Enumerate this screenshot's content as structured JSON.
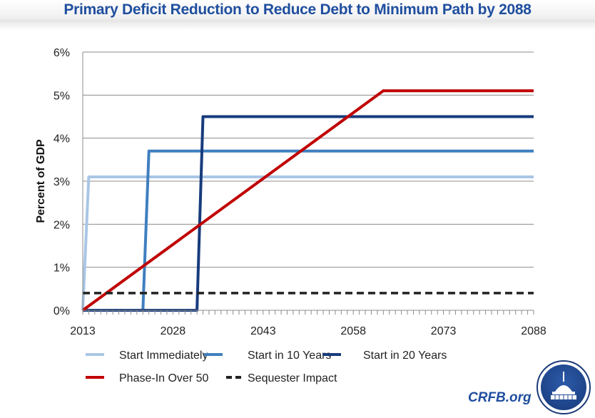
{
  "title": "Primary Deficit Reduction to Reduce Debt to Minimum Path by 2088",
  "branding": {
    "site": "CRFB.org",
    "logo": "capitol-dome-logo"
  },
  "chart_data": {
    "type": "line",
    "title": "Primary Deficit Reduction to Reduce Debt to Minimum Path by 2088",
    "xlabel": "",
    "ylabel": "Percent of GDP",
    "xlim": [
      2013,
      2088
    ],
    "ylim": [
      0,
      6
    ],
    "x_ticks": [
      "2013",
      "2028",
      "2043",
      "2058",
      "2073",
      "2088"
    ],
    "x_tick_values": [
      2013,
      2028,
      2043,
      2058,
      2073,
      2088
    ],
    "y_ticks": [
      "0%",
      "1%",
      "2%",
      "3%",
      "4%",
      "5%",
      "6%"
    ],
    "y_tick_values": [
      0,
      1,
      2,
      3,
      4,
      5,
      6
    ],
    "grid": "horizontal",
    "legend_position": "bottom",
    "series": [
      {
        "name": "Start Immediately",
        "color": "#a9c6e6",
        "dashed": false,
        "points": [
          [
            2013,
            0
          ],
          [
            2014,
            3.1
          ],
          [
            2088,
            3.1
          ]
        ]
      },
      {
        "name": "Start in 10 Years",
        "color": "#3f7fbf",
        "dashed": false,
        "points": [
          [
            2013,
            0
          ],
          [
            2023,
            0
          ],
          [
            2024,
            3.7
          ],
          [
            2088,
            3.7
          ]
        ]
      },
      {
        "name": "Start in 20 Years",
        "color": "#173b7c",
        "dashed": false,
        "points": [
          [
            2013,
            0
          ],
          [
            2032,
            0
          ],
          [
            2033,
            4.5
          ],
          [
            2088,
            4.5
          ]
        ]
      },
      {
        "name": "Phase-In Over 50",
        "color": "#c00000",
        "dashed": false,
        "points": [
          [
            2013,
            0
          ],
          [
            2063,
            5.1
          ],
          [
            2088,
            5.1
          ]
        ]
      },
      {
        "name": "Sequester Impact",
        "color": "#222222",
        "dashed": true,
        "points": [
          [
            2013,
            0.4
          ],
          [
            2088,
            0.4
          ]
        ]
      }
    ]
  }
}
